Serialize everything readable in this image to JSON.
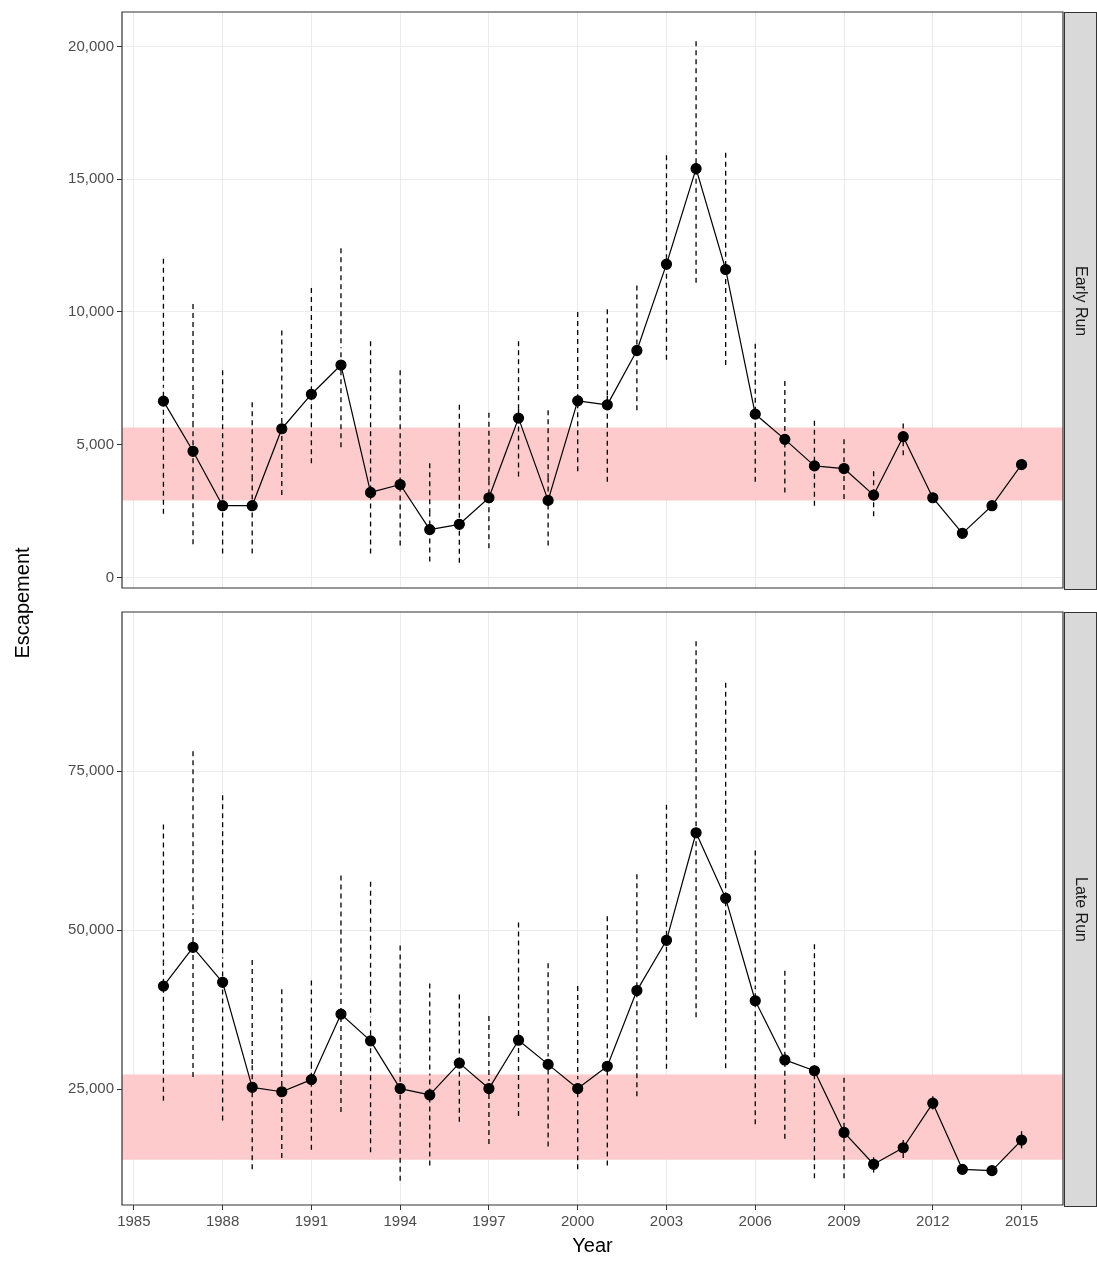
{
  "chart_data": [
    {
      "type": "line",
      "annotations": [
        "Early Run"
      ],
      "ylabel": "Escapement",
      "color": "#000000",
      "marker": "circle",
      "line_style": "solid",
      "grid": true,
      "tick_labels": "y",
      "x": [
        1986,
        1987,
        1988,
        1989,
        1990,
        1991,
        1992,
        1993,
        1994,
        1995,
        1996,
        1997,
        1998,
        1999,
        2000,
        2001,
        2002,
        2003,
        2004,
        2005,
        2006,
        2007,
        2008,
        2009,
        2010,
        2011,
        2012,
        2013,
        2014,
        2015
      ],
      "values": [
        6640,
        4750,
        2700,
        2700,
        5600,
        6900,
        8000,
        3200,
        3500,
        1800,
        2000,
        3000,
        6000,
        2900,
        6650,
        6500,
        8550,
        11800,
        15400,
        11600,
        6150,
        5200,
        4200,
        4100,
        3100,
        5300,
        3000,
        1660,
        2700,
        4250
      ],
      "errors": [
        [
          2400,
          12000
        ],
        [
          1250,
          10300
        ],
        [
          900,
          7800
        ],
        [
          900,
          6600
        ],
        [
          3100,
          9300
        ],
        [
          4300,
          10900
        ],
        [
          4900,
          12400
        ],
        [
          900,
          8900
        ],
        [
          1200,
          7800
        ],
        [
          600,
          4300
        ],
        [
          550,
          6500
        ],
        [
          1100,
          6200
        ],
        [
          3800,
          8900
        ],
        [
          1200,
          6300
        ],
        [
          4000,
          10000
        ],
        [
          3600,
          10100
        ],
        [
          6300,
          11000
        ],
        [
          8200,
          15900
        ],
        [
          11100,
          20200
        ],
        [
          8000,
          16000
        ],
        [
          3600,
          8800
        ],
        [
          3200,
          7400
        ],
        [
          2700,
          5900
        ],
        [
          2950,
          5200
        ],
        [
          2300,
          4000
        ],
        [
          4600,
          5800
        ],
        null,
        null,
        null,
        null
      ],
      "xlim": [
        1984.6,
        2016.4
      ],
      "xticks": [
        1985,
        1988,
        1991,
        1994,
        1997,
        2000,
        2003,
        2006,
        2009,
        2012,
        2015
      ],
      "ylim": [
        -400,
        21300
      ],
      "yticks": [
        {
          "value": 0,
          "label": "0"
        },
        {
          "value": 5000,
          "label": "5,000"
        },
        {
          "value": 10000,
          "label": "10,000"
        },
        {
          "value": 15000,
          "label": "15,000"
        },
        {
          "value": 20000,
          "label": "20,000"
        }
      ],
      "bands": [
        {
          "axis": "y",
          "from": 2900,
          "to": 5650,
          "color": "#fdcbcb"
        }
      ]
    },
    {
      "type": "line",
      "annotations": [
        "Late Run"
      ],
      "xlabel": "Year",
      "color": "#000000",
      "marker": "circle",
      "line_style": "solid",
      "grid": true,
      "x": [
        1986,
        1987,
        1988,
        1989,
        1990,
        1991,
        1992,
        1993,
        1994,
        1995,
        1996,
        1997,
        1998,
        1999,
        2000,
        2001,
        2002,
        2003,
        2004,
        2005,
        2006,
        2007,
        2008,
        2009,
        2010,
        2011,
        2012,
        2013,
        2014,
        2015
      ],
      "values": [
        41200,
        47300,
        41800,
        25300,
        24600,
        26500,
        36800,
        32600,
        25100,
        24100,
        29100,
        25100,
        32700,
        28900,
        25100,
        28600,
        40500,
        48400,
        65300,
        55000,
        38900,
        29600,
        27900,
        18200,
        13200,
        15800,
        22800,
        12400,
        12200,
        17000
      ],
      "errors": [
        [
          23200,
          66600
        ],
        [
          26900,
          78100
        ],
        [
          20100,
          71200
        ],
        [
          12400,
          45300
        ],
        [
          14200,
          40700
        ],
        [
          15500,
          42100
        ],
        [
          21400,
          58600
        ],
        [
          15100,
          57600
        ],
        [
          10600,
          47600
        ],
        [
          13000,
          41600
        ],
        [
          19900,
          39900
        ],
        [
          16400,
          36500
        ],
        [
          20800,
          51200
        ],
        [
          16000,
          44800
        ],
        [
          12400,
          41200
        ],
        [
          13000,
          52200
        ],
        [
          23900,
          58800
        ],
        [
          28200,
          69700
        ],
        [
          36300,
          95400
        ],
        [
          28300,
          88900
        ],
        [
          19500,
          62500
        ],
        [
          17200,
          43600
        ],
        [
          11000,
          47800
        ],
        [
          11000,
          26800
        ],
        [
          11900,
          14300
        ],
        [
          14200,
          17000
        ],
        [
          21800,
          23900
        ],
        null,
        null,
        [
          15700,
          18400
        ]
      ],
      "xlim": [
        1984.6,
        2016.4
      ],
      "xticks": [
        1985,
        1988,
        1991,
        1994,
        1997,
        2000,
        2003,
        2006,
        2009,
        2012,
        2015
      ],
      "ylim": [
        6800,
        100000
      ],
      "yticks": [
        {
          "value": 25000,
          "label": "25,000"
        },
        {
          "value": 50000,
          "label": "50,000"
        },
        {
          "value": 75000,
          "label": "75,000"
        }
      ],
      "bands": [
        {
          "axis": "y",
          "from": 13900,
          "to": 27300,
          "color": "#fdcbcb"
        }
      ]
    }
  ]
}
